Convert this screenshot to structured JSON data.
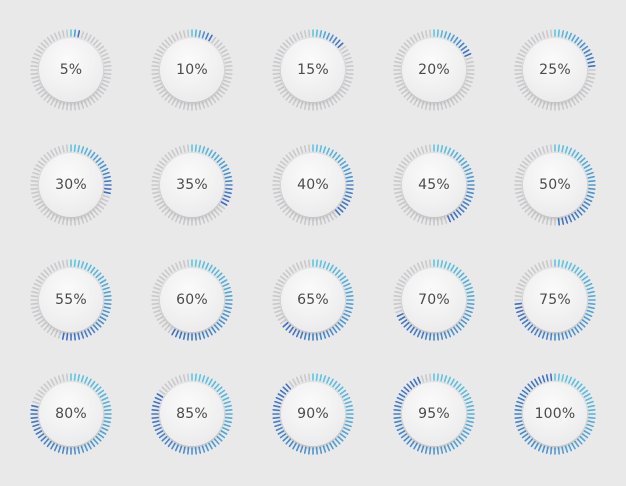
{
  "colors": {
    "background": "#e9e9ea",
    "tick_inactive": "#c9c9cc",
    "tick_active_start": "#5ec8e3",
    "tick_active_end": "#3f6fc4",
    "label": "#4b4b4e"
  },
  "dials": [
    {
      "value": 5,
      "label": "5%"
    },
    {
      "value": 10,
      "label": "10%"
    },
    {
      "value": 15,
      "label": "15%"
    },
    {
      "value": 20,
      "label": "20%"
    },
    {
      "value": 25,
      "label": "25%"
    },
    {
      "value": 30,
      "label": "30%"
    },
    {
      "value": 35,
      "label": "35%"
    },
    {
      "value": 40,
      "label": "40%"
    },
    {
      "value": 45,
      "label": "45%"
    },
    {
      "value": 50,
      "label": "50%"
    },
    {
      "value": 55,
      "label": "55%"
    },
    {
      "value": 60,
      "label": "60%"
    },
    {
      "value": 65,
      "label": "65%"
    },
    {
      "value": 70,
      "label": "70%"
    },
    {
      "value": 75,
      "label": "75%"
    },
    {
      "value": 80,
      "label": "80%"
    },
    {
      "value": 85,
      "label": "85%"
    },
    {
      "value": 90,
      "label": "90%"
    },
    {
      "value": 95,
      "label": "95%"
    },
    {
      "value": 100,
      "label": "100%"
    }
  ]
}
